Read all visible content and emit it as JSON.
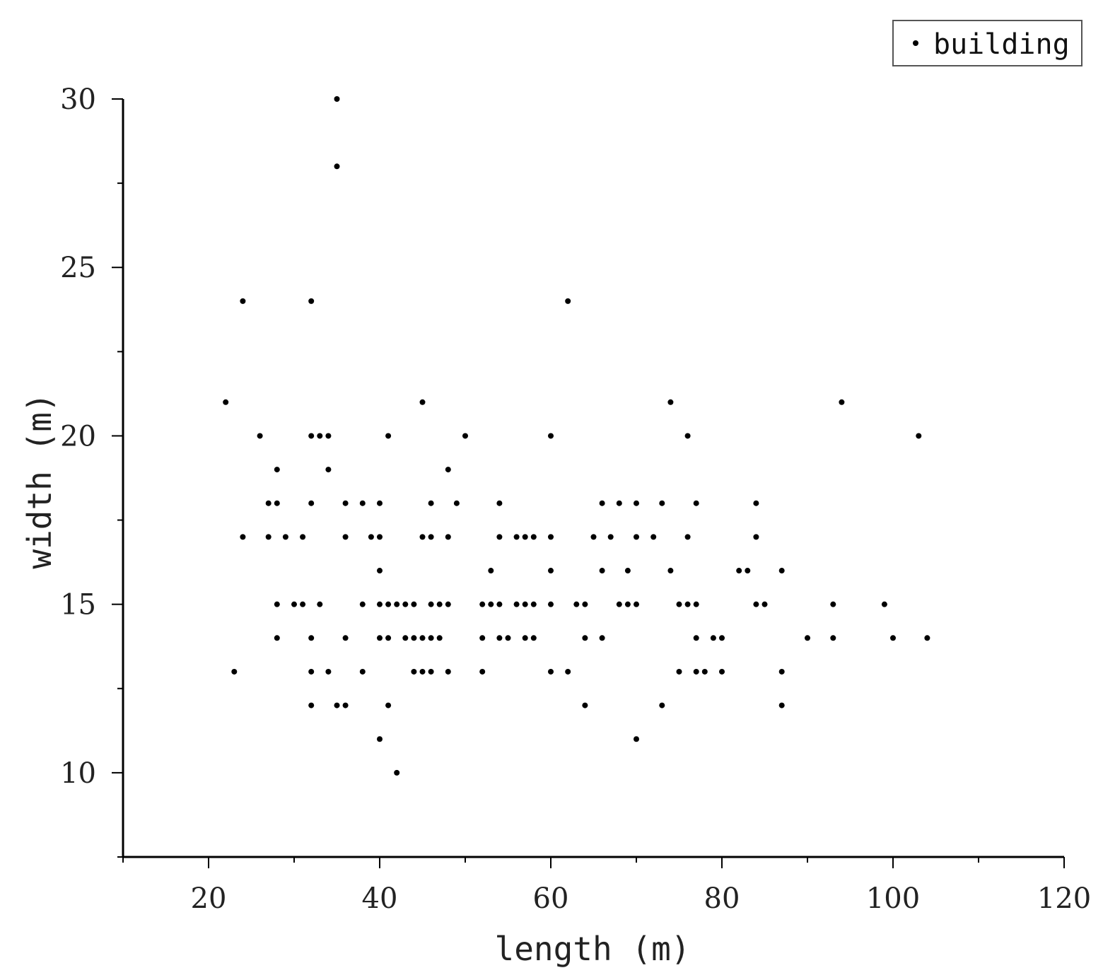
{
  "chart_data": {
    "type": "scatter",
    "xlabel": "length (m)",
    "ylabel": "width (m)",
    "xlim": [
      10,
      120
    ],
    "ylim": [
      7.5,
      30
    ],
    "x_ticks": [
      20,
      40,
      60,
      80,
      100,
      120
    ],
    "y_ticks": [
      10,
      15,
      20,
      25,
      30
    ],
    "grid": false,
    "legend_position": "top-right",
    "marker_color": "#000000",
    "axis_color": "#000000",
    "series": [
      {
        "name": "building",
        "points": [
          [
            35,
            30
          ],
          [
            35,
            28
          ],
          [
            24,
            24
          ],
          [
            32,
            24
          ],
          [
            62,
            24
          ],
          [
            22,
            21
          ],
          [
            45,
            21
          ],
          [
            74,
            21
          ],
          [
            94,
            21
          ],
          [
            26,
            20
          ],
          [
            32,
            20
          ],
          [
            33,
            20
          ],
          [
            34,
            20
          ],
          [
            41,
            20
          ],
          [
            50,
            20
          ],
          [
            60,
            20
          ],
          [
            76,
            20
          ],
          [
            103,
            20
          ],
          [
            28,
            19
          ],
          [
            34,
            19
          ],
          [
            48,
            19
          ],
          [
            27,
            18
          ],
          [
            28,
            18
          ],
          [
            32,
            18
          ],
          [
            36,
            18
          ],
          [
            38,
            18
          ],
          [
            40,
            18
          ],
          [
            46,
            18
          ],
          [
            49,
            18
          ],
          [
            54,
            18
          ],
          [
            66,
            18
          ],
          [
            68,
            18
          ],
          [
            70,
            18
          ],
          [
            73,
            18
          ],
          [
            77,
            18
          ],
          [
            84,
            18
          ],
          [
            24,
            17
          ],
          [
            27,
            17
          ],
          [
            29,
            17
          ],
          [
            31,
            17
          ],
          [
            36,
            17
          ],
          [
            39,
            17
          ],
          [
            40,
            17
          ],
          [
            45,
            17
          ],
          [
            46,
            17
          ],
          [
            48,
            17
          ],
          [
            54,
            17
          ],
          [
            56,
            17
          ],
          [
            57,
            17
          ],
          [
            58,
            17
          ],
          [
            60,
            17
          ],
          [
            65,
            17
          ],
          [
            67,
            17
          ],
          [
            70,
            17
          ],
          [
            72,
            17
          ],
          [
            76,
            17
          ],
          [
            84,
            17
          ],
          [
            40,
            16
          ],
          [
            53,
            16
          ],
          [
            60,
            16
          ],
          [
            66,
            16
          ],
          [
            69,
            16
          ],
          [
            74,
            16
          ],
          [
            82,
            16
          ],
          [
            83,
            16
          ],
          [
            87,
            16
          ],
          [
            28,
            15
          ],
          [
            30,
            15
          ],
          [
            31,
            15
          ],
          [
            33,
            15
          ],
          [
            38,
            15
          ],
          [
            40,
            15
          ],
          [
            41,
            15
          ],
          [
            42,
            15
          ],
          [
            43,
            15
          ],
          [
            44,
            15
          ],
          [
            46,
            15
          ],
          [
            47,
            15
          ],
          [
            48,
            15
          ],
          [
            52,
            15
          ],
          [
            53,
            15
          ],
          [
            54,
            15
          ],
          [
            56,
            15
          ],
          [
            57,
            15
          ],
          [
            58,
            15
          ],
          [
            60,
            15
          ],
          [
            63,
            15
          ],
          [
            64,
            15
          ],
          [
            68,
            15
          ],
          [
            69,
            15
          ],
          [
            70,
            15
          ],
          [
            75,
            15
          ],
          [
            76,
            15
          ],
          [
            77,
            15
          ],
          [
            84,
            15
          ],
          [
            85,
            15
          ],
          [
            93,
            15
          ],
          [
            99,
            15
          ],
          [
            28,
            14
          ],
          [
            32,
            14
          ],
          [
            36,
            14
          ],
          [
            40,
            14
          ],
          [
            41,
            14
          ],
          [
            43,
            14
          ],
          [
            44,
            14
          ],
          [
            45,
            14
          ],
          [
            46,
            14
          ],
          [
            47,
            14
          ],
          [
            52,
            14
          ],
          [
            54,
            14
          ],
          [
            55,
            14
          ],
          [
            57,
            14
          ],
          [
            58,
            14
          ],
          [
            64,
            14
          ],
          [
            66,
            14
          ],
          [
            77,
            14
          ],
          [
            79,
            14
          ],
          [
            80,
            14
          ],
          [
            90,
            14
          ],
          [
            93,
            14
          ],
          [
            100,
            14
          ],
          [
            104,
            14
          ],
          [
            23,
            13
          ],
          [
            32,
            13
          ],
          [
            34,
            13
          ],
          [
            38,
            13
          ],
          [
            44,
            13
          ],
          [
            45,
            13
          ],
          [
            46,
            13
          ],
          [
            48,
            13
          ],
          [
            52,
            13
          ],
          [
            60,
            13
          ],
          [
            62,
            13
          ],
          [
            75,
            13
          ],
          [
            77,
            13
          ],
          [
            78,
            13
          ],
          [
            80,
            13
          ],
          [
            87,
            13
          ],
          [
            32,
            12
          ],
          [
            35,
            12
          ],
          [
            36,
            12
          ],
          [
            41,
            12
          ],
          [
            64,
            12
          ],
          [
            73,
            12
          ],
          [
            87,
            12
          ],
          [
            40,
            11
          ],
          [
            70,
            11
          ],
          [
            42,
            10
          ]
        ]
      }
    ]
  }
}
